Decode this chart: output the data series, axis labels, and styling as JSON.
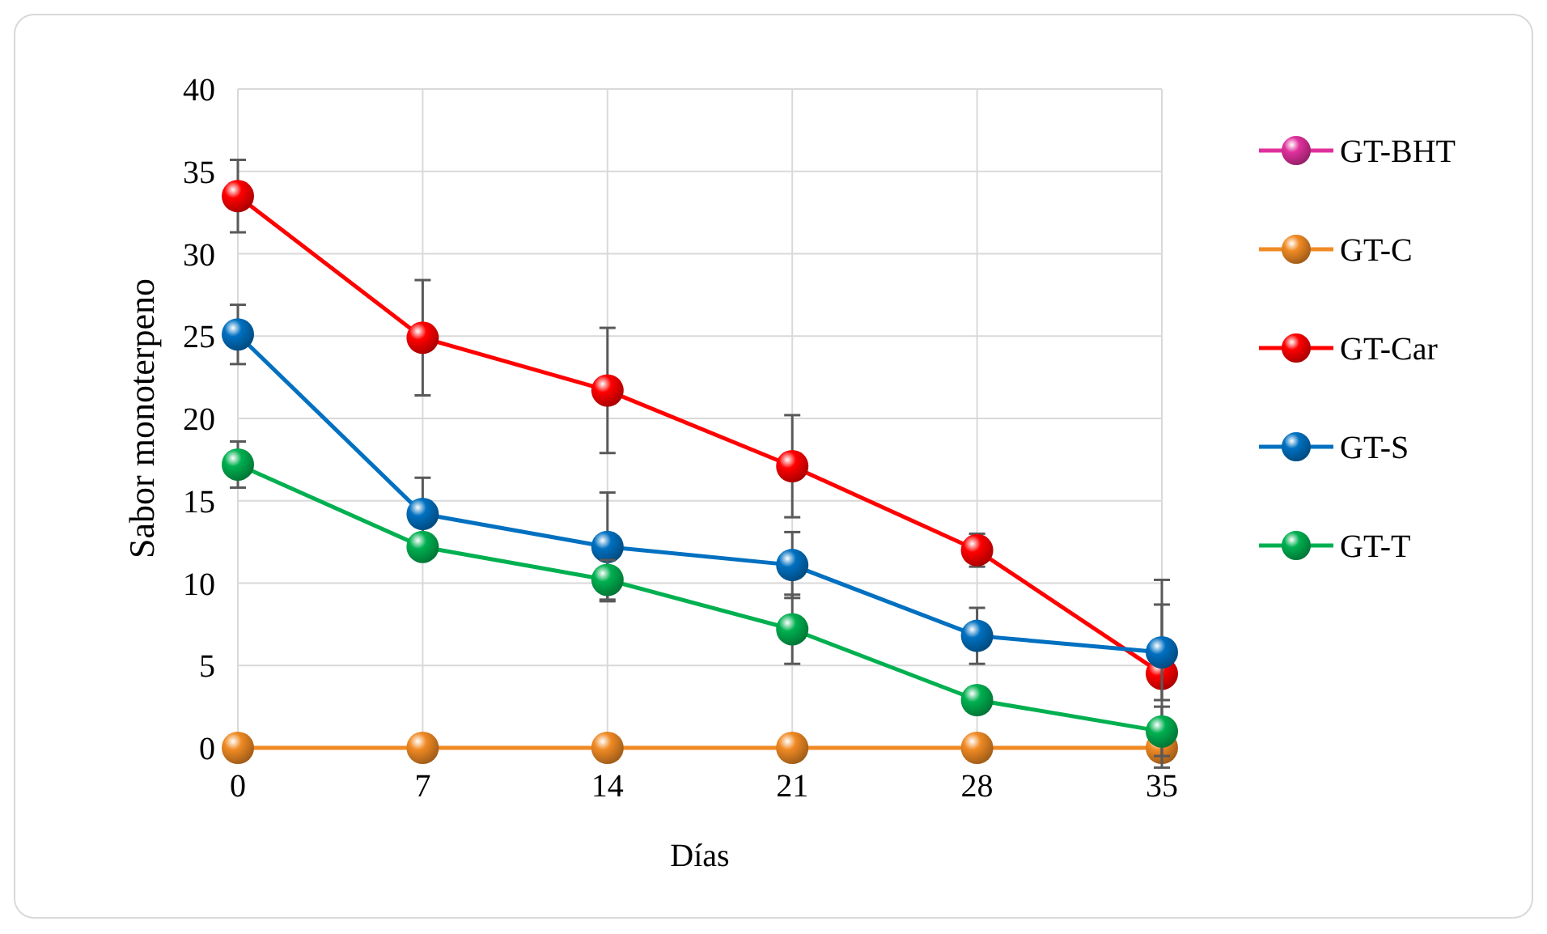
{
  "chart_data": {
    "type": "line",
    "xlabel": "Días",
    "ylabel": "Sabor monoterpeno",
    "x": [
      0,
      7,
      14,
      21,
      28,
      35
    ],
    "xlim": [
      0,
      35
    ],
    "xticks": [
      0,
      7,
      14,
      21,
      28,
      35
    ],
    "ylim": [
      0,
      40
    ],
    "yticks": [
      0,
      5,
      10,
      15,
      20,
      25,
      30,
      35,
      40
    ],
    "grid": true,
    "legend": "right",
    "marker": "circle",
    "line_style": "solid",
    "series": [
      {
        "name": "GT-BHT",
        "color": "#e0309c",
        "values": [
          null,
          null,
          null,
          null,
          null,
          null
        ]
      },
      {
        "name": "GT-C",
        "color": "#f08a24",
        "values": [
          0,
          0,
          0,
          0,
          0,
          0
        ]
      },
      {
        "name": "GT-Car",
        "color": "#ff0000",
        "values": [
          33.5,
          24.9,
          21.7,
          17.1,
          12.0,
          4.5
        ],
        "errors": [
          2.2,
          3.5,
          3.8,
          3.1,
          1.0,
          5.7
        ]
      },
      {
        "name": "GT-S",
        "color": "#0070c0",
        "values": [
          25.1,
          14.2,
          12.2,
          11.1,
          6.8,
          5.8
        ],
        "errors": [
          1.8,
          2.2,
          3.3,
          2.0,
          1.7,
          2.9
        ]
      },
      {
        "name": "GT-T",
        "color": "#00b050",
        "values": [
          17.2,
          12.2,
          10.2,
          7.2,
          2.9,
          1.0
        ],
        "errors": [
          1.4,
          null,
          1.2,
          2.1,
          null,
          1.5
        ]
      }
    ]
  }
}
